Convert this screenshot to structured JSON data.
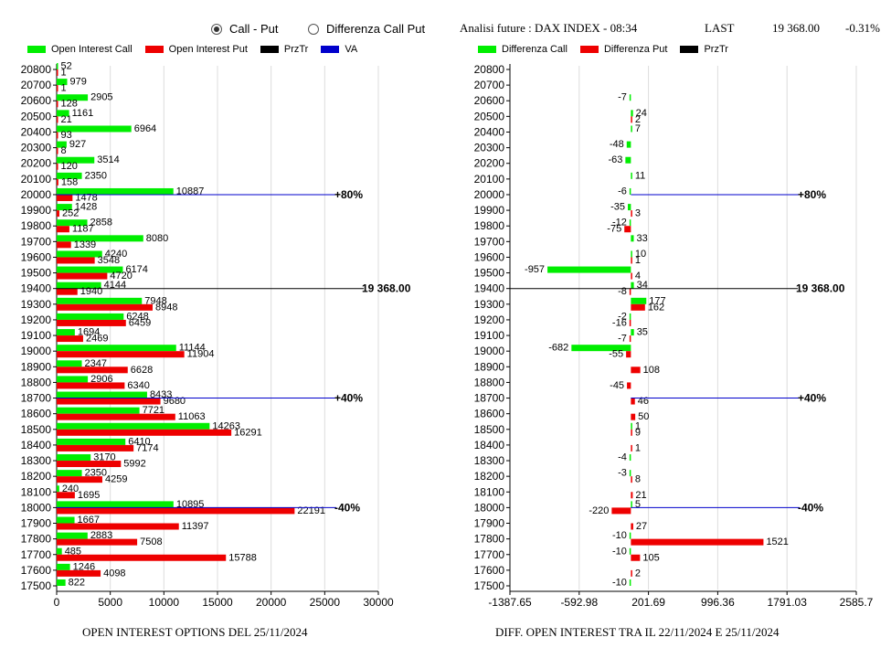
{
  "header": {
    "mode_options": [
      {
        "label": "Call - Put",
        "selected": true
      },
      {
        "label": "Differenza Call Put",
        "selected": false
      }
    ],
    "analysis_label": "Analisi future : DAX INDEX - 08:34",
    "last_label": "LAST",
    "last_value": "19 368.00",
    "last_change": "-0.31%"
  },
  "colors": {
    "call": "#00ee00",
    "put": "#ee0000",
    "przTr": "#000000",
    "va": "#0000cc"
  },
  "left_legend": [
    {
      "label": "Open Interest Call",
      "color": "#00ee00"
    },
    {
      "label": "Open Interest Put",
      "color": "#ee0000"
    },
    {
      "label": "PrzTr",
      "color": "#000000"
    },
    {
      "label": "VA",
      "color": "#0000cc"
    }
  ],
  "right_legend": [
    {
      "label": "Differenza Call",
      "color": "#00ee00"
    },
    {
      "label": "Differenza Put",
      "color": "#ee0000"
    },
    {
      "label": "PrzTr",
      "color": "#000000"
    }
  ],
  "chart_data": [
    {
      "type": "bar",
      "orientation": "horizontal",
      "title": "OPEN INTEREST OPTIONS DEL 25/11/2024",
      "categories": [
        "20800",
        "20700",
        "20600",
        "20500",
        "20400",
        "20300",
        "20200",
        "20100",
        "20000",
        "19900",
        "19800",
        "19700",
        "19600",
        "19500",
        "19400",
        "19300",
        "19200",
        "19100",
        "19000",
        "18900",
        "18800",
        "18700",
        "18600",
        "18500",
        "18400",
        "18300",
        "18200",
        "18100",
        "18000",
        "17900",
        "17800",
        "17700",
        "17600",
        "17500"
      ],
      "series": [
        {
          "name": "Open Interest Call",
          "values": [
            52,
            979,
            2905,
            1161,
            6964,
            927,
            3514,
            2350,
            10887,
            1428,
            2858,
            8080,
            4240,
            6174,
            4144,
            7948,
            6248,
            1694,
            11144,
            2347,
            2906,
            8433,
            7721,
            14263,
            6410,
            3170,
            2350,
            240,
            10895,
            1667,
            2883,
            485,
            1246,
            822
          ]
        },
        {
          "name": "Open Interest Put",
          "values": [
            1,
            1,
            128,
            21,
            93,
            8,
            120,
            158,
            1478,
            252,
            1187,
            1339,
            3548,
            4720,
            1940,
            8948,
            6459,
            2469,
            11904,
            6628,
            6340,
            9680,
            11063,
            16291,
            7174,
            5992,
            4259,
            1695,
            22191,
            11397,
            7508,
            15788,
            4098,
            null
          ]
        }
      ],
      "xticks": [
        "0",
        "5000",
        "10000",
        "15000",
        "20000",
        "25000",
        "30000"
      ],
      "xlim": [
        0,
        30000
      ],
      "reference_lines": [
        {
          "strike": "20000",
          "label": "+80%",
          "type": "VA"
        },
        {
          "strike": "19400",
          "label": "19 368.00",
          "type": "PrzTr"
        },
        {
          "strike": "18700",
          "label": "+40%",
          "type": "VA"
        },
        {
          "strike": "18000",
          "label": "-40%",
          "type": "VA"
        }
      ],
      "grid": true
    },
    {
      "type": "bar",
      "orientation": "horizontal",
      "title": "DIFF. OPEN INTEREST TRA IL 22/11/2024 E 25/11/2024",
      "categories": [
        "20800",
        "20700",
        "20600",
        "20500",
        "20400",
        "20300",
        "20200",
        "20100",
        "20000",
        "19900",
        "19800",
        "19700",
        "19600",
        "19500",
        "19400",
        "19300",
        "19200",
        "19100",
        "19000",
        "18900",
        "18800",
        "18700",
        "18600",
        "18500",
        "18400",
        "18300",
        "18200",
        "18100",
        "18000",
        "17900",
        "17800",
        "17700",
        "17600",
        "17500"
      ],
      "series": [
        {
          "name": "Differenza Call",
          "values": [
            null,
            null,
            -7,
            24,
            7,
            -48,
            -63,
            11,
            -6,
            -35,
            -12,
            33,
            10,
            -957,
            34,
            177,
            -2,
            35,
            -682,
            null,
            null,
            null,
            null,
            1,
            null,
            -4,
            -3,
            null,
            5,
            null,
            -10,
            -10,
            null,
            -10
          ]
        },
        {
          "name": "Differenza Put",
          "values": [
            null,
            null,
            null,
            2,
            null,
            null,
            null,
            null,
            null,
            3,
            -75,
            null,
            1,
            4,
            -8,
            162,
            -16,
            -7,
            -55,
            108,
            -45,
            46,
            50,
            9,
            1,
            null,
            8,
            21,
            -220,
            27,
            1521,
            105,
            2,
            null
          ]
        }
      ],
      "xticks": [
        "-1387.65",
        "-592.98",
        "201.69",
        "996.36",
        "1791.03",
        "2585.7"
      ],
      "xlim": [
        -1387.65,
        2585.7
      ],
      "reference_lines": [
        {
          "strike": "20000",
          "label": "+80%",
          "type": "VA"
        },
        {
          "strike": "19400",
          "label": "19 368.00",
          "type": "PrzTr"
        },
        {
          "strike": "18700",
          "label": "+40%",
          "type": "VA"
        },
        {
          "strike": "18000",
          "label": "-40%",
          "type": "VA"
        }
      ],
      "grid": true
    }
  ]
}
